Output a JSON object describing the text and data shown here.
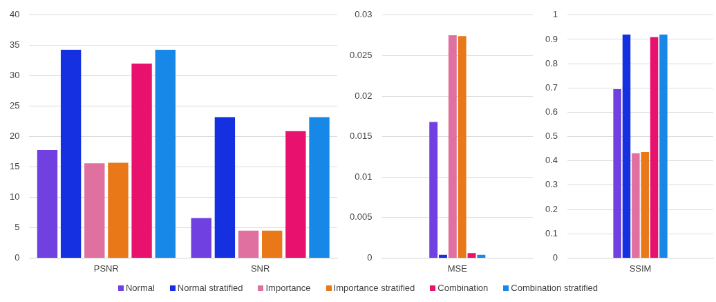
{
  "chart_data": [
    {
      "type": "bar",
      "categories": [
        "PSNR",
        "SNR"
      ],
      "ylim": [
        0,
        40
      ],
      "yticks": [
        0,
        5,
        10,
        15,
        20,
        25,
        30,
        35,
        40
      ],
      "grid": "y",
      "legend": "bottom",
      "series": [
        {
          "name": "Normal",
          "color": "#7040e0",
          "values": [
            17.8,
            6.6
          ]
        },
        {
          "name": "Normal stratified",
          "color": "#1530e0",
          "values": [
            34.3,
            23.2
          ]
        },
        {
          "name": "Importance",
          "color": "#e070a0",
          "values": [
            15.6,
            4.5
          ]
        },
        {
          "name": "Importance stratified",
          "color": "#e87818",
          "values": [
            15.7,
            4.5
          ]
        },
        {
          "name": "Combination",
          "color": "#e8126e",
          "values": [
            32.0,
            20.9
          ]
        },
        {
          "name": "Combination stratified",
          "color": "#1888e8",
          "values": [
            34.3,
            23.2
          ]
        }
      ]
    },
    {
      "type": "bar",
      "categories": [
        "MSE"
      ],
      "ylim": [
        0,
        0.03
      ],
      "yticks": [
        0,
        0.005,
        0.01,
        0.015,
        0.02,
        0.025,
        0.03
      ],
      "grid": "y",
      "series": [
        {
          "color": "#7040e0",
          "values": [
            0.0168
          ]
        },
        {
          "color": "#1530e0",
          "values": [
            0.0004
          ]
        },
        {
          "color": "#e070a0",
          "values": [
            0.0275
          ]
        },
        {
          "color": "#e87818",
          "values": [
            0.0274
          ]
        },
        {
          "color": "#e8126e",
          "values": [
            0.0006
          ]
        },
        {
          "color": "#1888e8",
          "values": [
            0.0004
          ]
        }
      ]
    },
    {
      "type": "bar",
      "categories": [
        "SSIM"
      ],
      "ylim": [
        0,
        1
      ],
      "yticks": [
        0,
        0.1,
        0.2,
        0.3,
        0.4,
        0.5,
        0.6,
        0.7,
        0.8,
        0.9,
        1
      ],
      "grid": "y",
      "series": [
        {
          "color": "#7040e0",
          "values": [
            0.695
          ]
        },
        {
          "color": "#1530e0",
          "values": [
            0.92
          ]
        },
        {
          "color": "#e070a0",
          "values": [
            0.431
          ]
        },
        {
          "color": "#e87818",
          "values": [
            0.436
          ]
        },
        {
          "color": "#e8126e",
          "values": [
            0.909
          ]
        },
        {
          "color": "#1888e8",
          "values": [
            0.92
          ]
        }
      ]
    }
  ]
}
